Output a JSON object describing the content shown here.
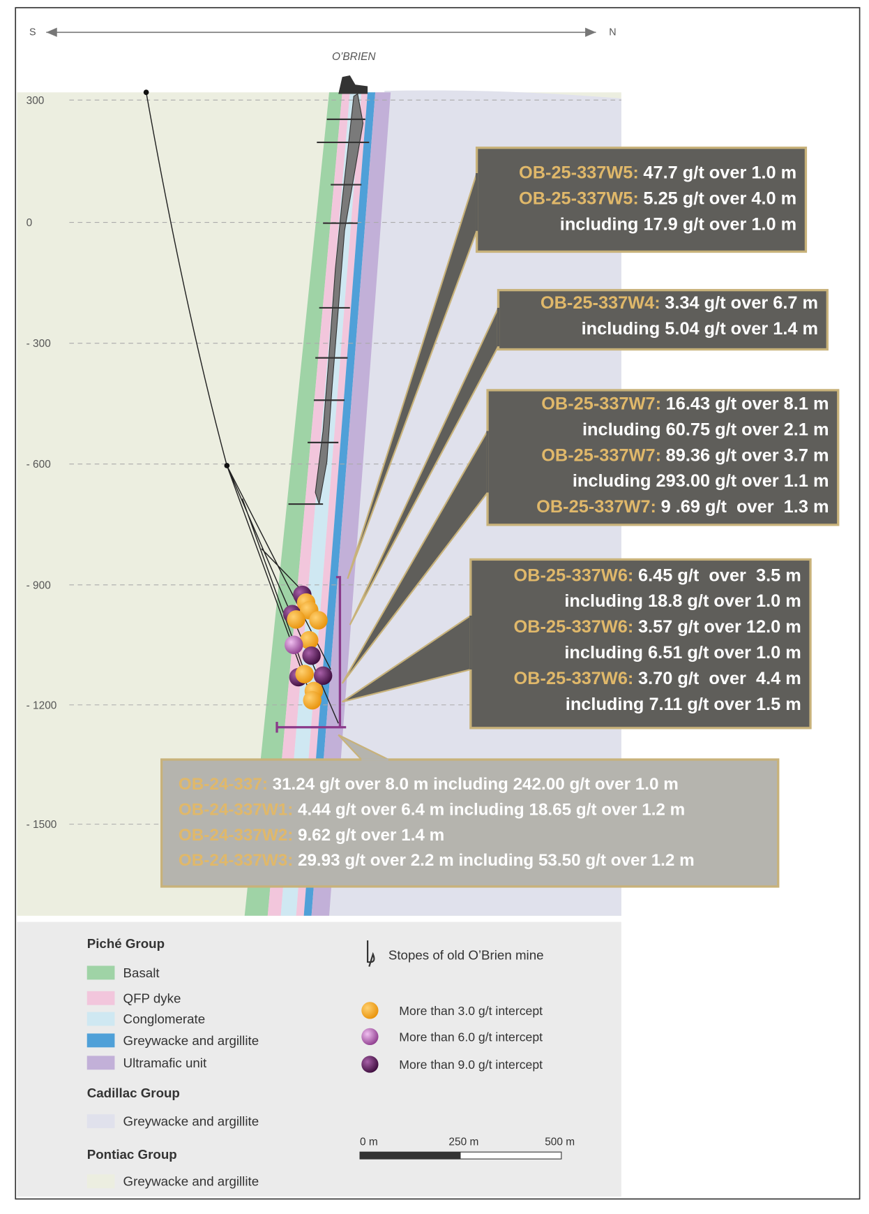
{
  "header": {
    "south": "S",
    "north": "N",
    "mine": "O’BRIEN"
  },
  "depth_labels": [
    "300",
    "0",
    "- 300",
    "- 600",
    "- 900",
    "- 1200",
    "- 1500"
  ],
  "callouts": [
    {
      "lines": [
        {
          "hole": "OB-25-337W5:",
          "text": "47.7 g/t over 1.0 m"
        },
        {
          "hole": "OB-25-337W5:",
          "text": "5.25 g/t over 4.0 m"
        },
        {
          "text": "including 17.9 g/t over 1.0 m"
        }
      ]
    },
    {
      "lines": [
        {
          "hole": "OB-25-337W4:",
          "text": "3.34 g/t over 6.7 m"
        },
        {
          "text": "including 5.04 g/t over 1.4 m"
        }
      ]
    },
    {
      "lines": [
        {
          "hole": "OB-25-337W7:",
          "text": "16.43 g/t over 8.1 m"
        },
        {
          "text": "including 60.75 g/t over 2.1 m"
        },
        {
          "hole": "OB-25-337W7:",
          "text": "89.36 g/t over 3.7 m"
        },
        {
          "text": "including 293.00 g/t over 1.1 m"
        },
        {
          "hole": "OB-25-337W7:",
          "text": "9 .69 g/t  over  1.3 m"
        }
      ]
    },
    {
      "lines": [
        {
          "hole": "OB-25-337W6:",
          "text": "6.45 g/t  over  3.5 m"
        },
        {
          "text": "including 18.8 g/t over 1.0 m"
        },
        {
          "hole": "OB-25-337W6:",
          "text": "3.57 g/t over 12.0 m"
        },
        {
          "text": "including 6.51 g/t over 1.0 m"
        },
        {
          "hole": "OB-25-337W6:",
          "text": "3.70 g/t  over  4.4 m"
        },
        {
          "text": "including 7.11 g/t over 1.5 m"
        }
      ]
    },
    {
      "lines": [
        {
          "hole": "OB-24-337:",
          "text": "31.24 g/t over 8.0 m including 242.00 g/t over 1.0 m"
        },
        {
          "hole": "OB-24-337W1:",
          "text": "4.44 g/t over 6.4 m including 18.65 g/t over 1.2 m"
        },
        {
          "hole": "OB-24-337W2:",
          "text": "9.62 g/t over 1.4 m"
        },
        {
          "hole": "OB-24-337W3:",
          "text": "29.93 g/t over 2.2 m including 53.50 g/t over 1.2 m"
        }
      ]
    }
  ],
  "legend": {
    "groups": [
      {
        "title": "Piché Group",
        "items": [
          "Basalt",
          "QFP dyke",
          "Conglomerate",
          "Greywacke and argillite",
          "Ultramafic unit"
        ]
      },
      {
        "title": "Cadillac Group",
        "items": [
          "Greywacke and argillite"
        ]
      },
      {
        "title": "Pontiac Group",
        "items": [
          "Greywacke and argillite"
        ]
      }
    ],
    "stopes": "Stopes of old O’Brien mine",
    "intercepts": [
      "More than 3.0 g/t intercept",
      "More than 6.0 g/t intercept",
      "More than 9.0 g/t intercept"
    ],
    "scale": [
      "0 m",
      "250 m",
      "500 m"
    ]
  }
}
